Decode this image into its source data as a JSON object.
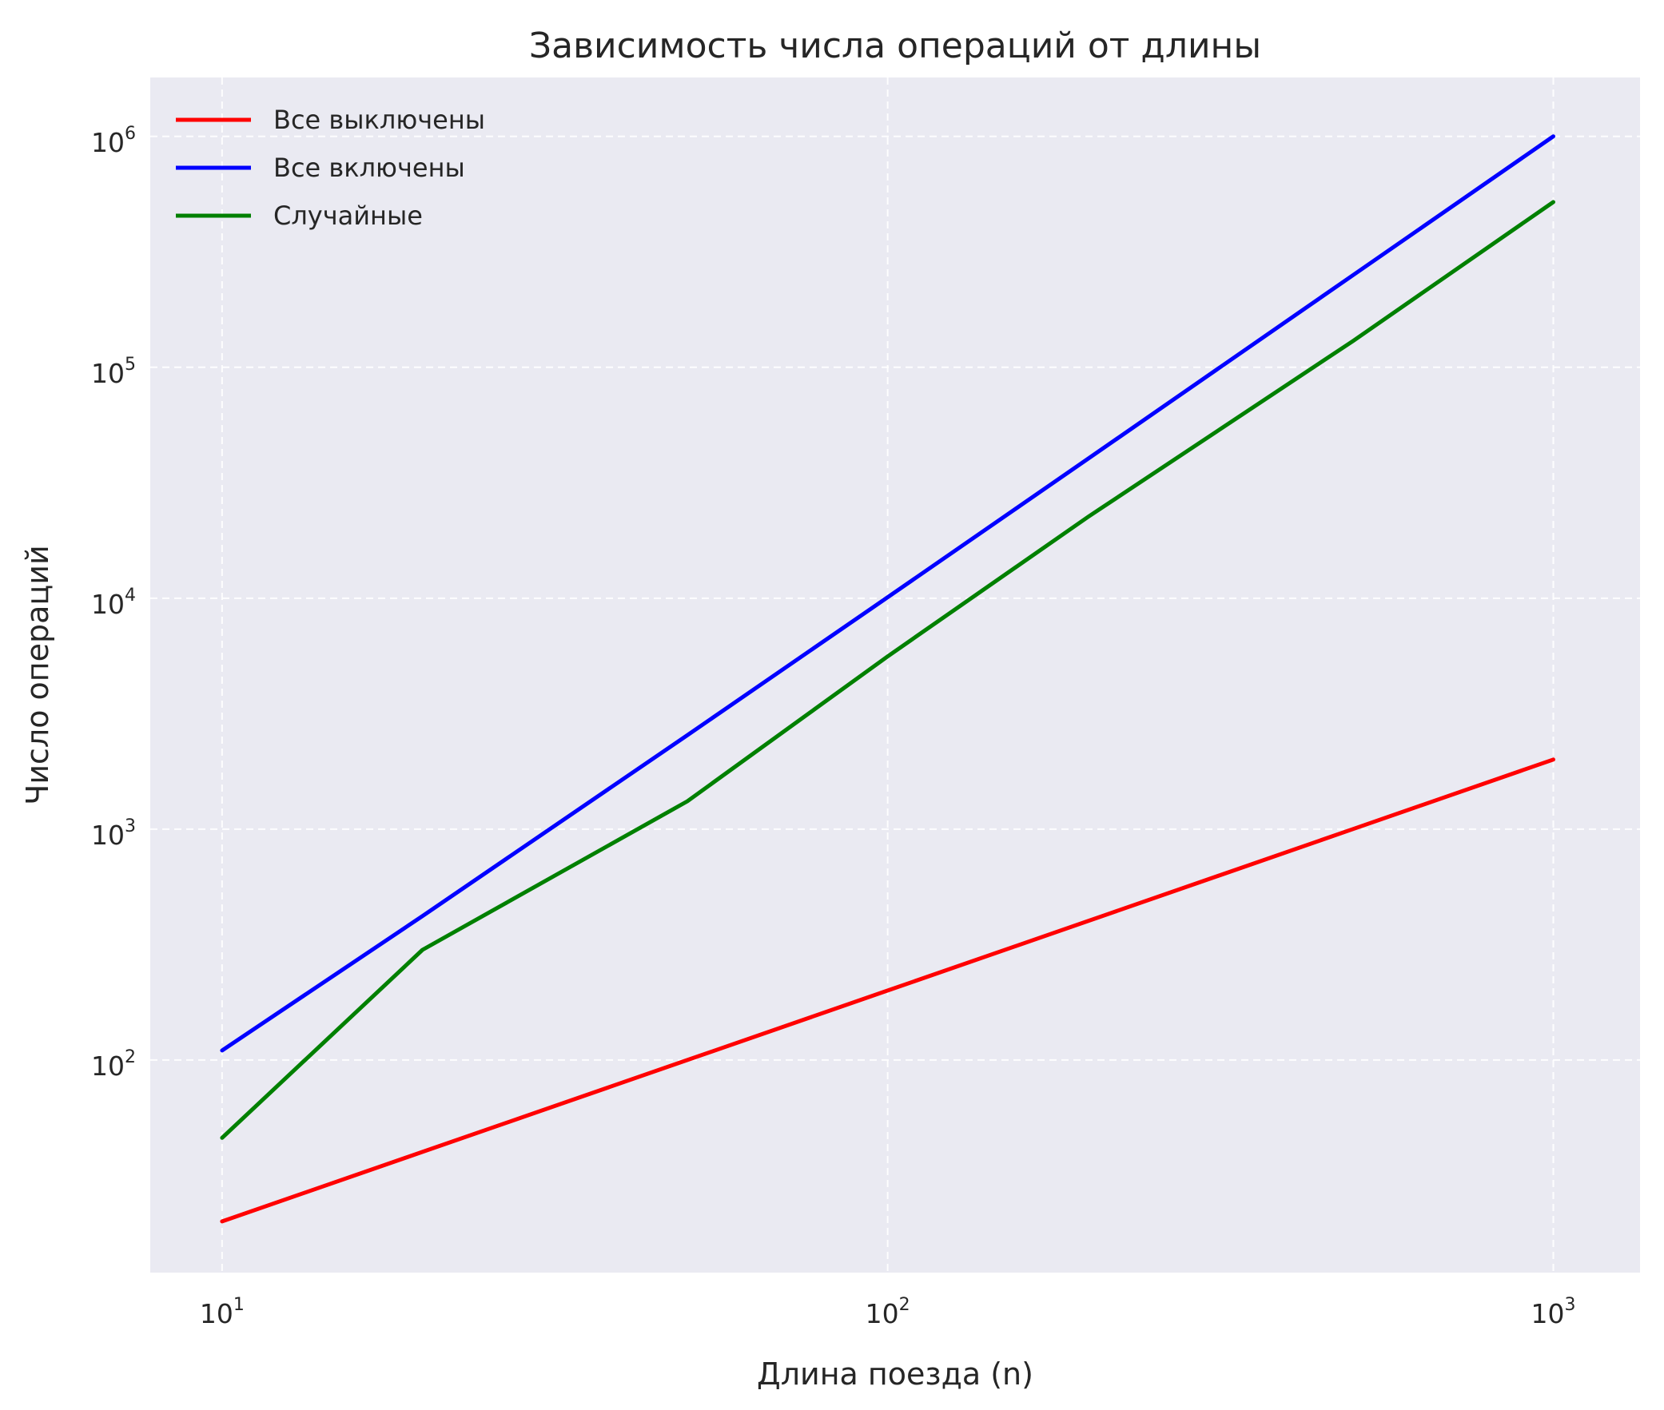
{
  "chart_data": {
    "type": "line",
    "title": "Зависимость числа операций от длины",
    "xlabel": "Длина поезда (n)",
    "ylabel": "Число операций",
    "xscale": "log",
    "yscale": "log",
    "xlim": [
      7.8,
      1350
    ],
    "ylim": [
      12,
      1800000
    ],
    "x_ticks": [
      {
        "value": 10,
        "base": "10",
        "exp": "1"
      },
      {
        "value": 100,
        "base": "10",
        "exp": "2"
      },
      {
        "value": 1000,
        "base": "10",
        "exp": "3"
      }
    ],
    "y_ticks": [
      {
        "value": 100,
        "base": "10",
        "exp": "2"
      },
      {
        "value": 1000,
        "base": "10",
        "exp": "3"
      },
      {
        "value": 10000,
        "base": "10",
        "exp": "4"
      },
      {
        "value": 100000,
        "base": "10",
        "exp": "5"
      },
      {
        "value": 1000000,
        "base": "10",
        "exp": "6"
      }
    ],
    "grid": true,
    "legend_position": "top-left",
    "background": "#eaeaf2",
    "series": [
      {
        "name": "Все выключены",
        "color": "#ff0000",
        "x": [
          10,
          20,
          50,
          100,
          200,
          500,
          1000
        ],
        "y": [
          20,
          40,
          100,
          200,
          400,
          1000,
          2000
        ]
      },
      {
        "name": "Все включены",
        "color": "#0000ff",
        "x": [
          10,
          20,
          50,
          100,
          200,
          500,
          1000
        ],
        "y": [
          110,
          420,
          2550,
          10100,
          40200,
          250500,
          1001000
        ]
      },
      {
        "name": "Случайные",
        "color": "#008000",
        "x": [
          10,
          20,
          50,
          100,
          200,
          500,
          1000
        ],
        "y": [
          46,
          300,
          1320,
          5600,
          22500,
          130000,
          520000
        ]
      }
    ]
  }
}
